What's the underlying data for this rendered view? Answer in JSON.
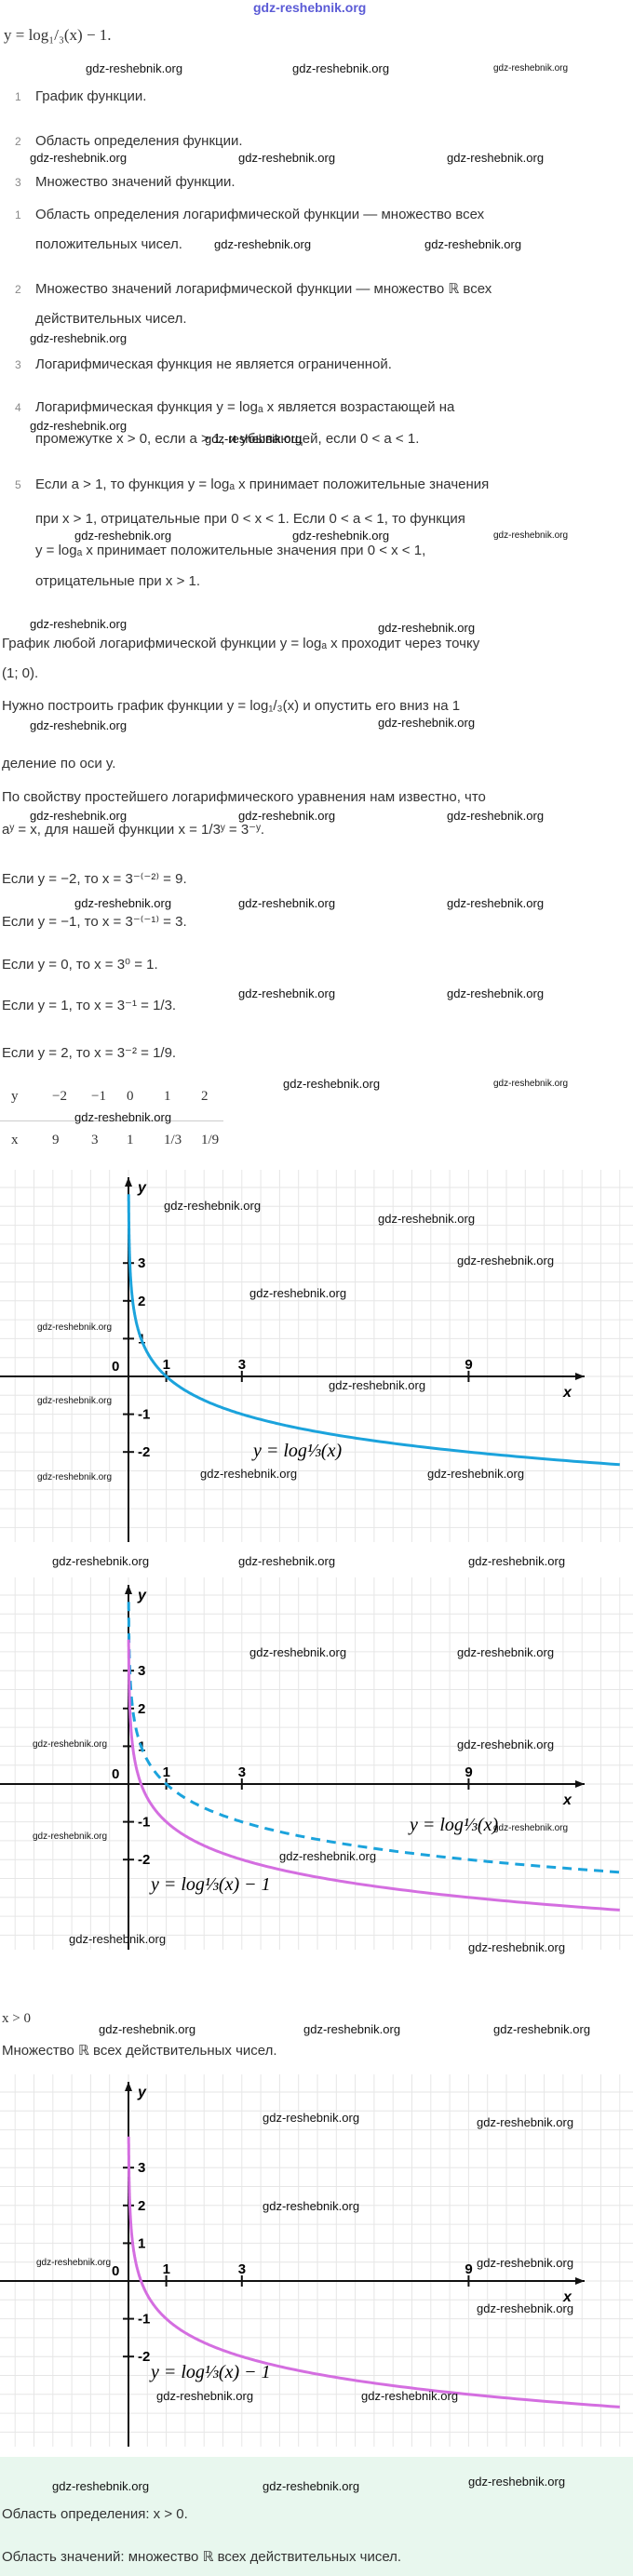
{
  "site": "gdz-reshebnik.org",
  "watermark": "gdz-reshebnik.org",
  "equation": "y = log₁/₃(x) − 1.",
  "plan": [
    {
      "n": 1,
      "text": "График функции."
    },
    {
      "n": 2,
      "text": "Область определения функции."
    },
    {
      "n": 3,
      "text": "Множество значений функции."
    }
  ],
  "properties": [
    {
      "n": 1,
      "lines": [
        "Область определения логарифмической функции — множество всех",
        "положительных чисел."
      ]
    },
    {
      "n": 2,
      "lines": [
        "Множество значений логарифмической функции — множество ℝ всех",
        "действительных чисел."
      ]
    },
    {
      "n": 3,
      "lines": [
        "Логарифмическая функция не является ограниченной."
      ]
    },
    {
      "n": 4,
      "lines": [
        "Логарифмическая функция y = logₐ x является возрастающей на",
        "промежутке x > 0, если a > 1, и убывающей, если 0 < a < 1."
      ]
    },
    {
      "n": 5,
      "lines": [
        "Если a > 1, то функция y = logₐ x принимает положительные значения",
        "при x > 1, отрицательные при 0 < x < 1. Если 0 < a < 1, то функция",
        "y = logₐ x принимает положительные значения при 0 < x < 1,",
        "отрицательные при x > 1."
      ]
    }
  ],
  "text_lines": [
    "График любой логарифмической функции y = logₐ x проходит через точку",
    "(1; 0).",
    "Нужно построить график функции y = log₁/₃(x) и опустить его вниз на 1",
    "деление по оси y.",
    "По свойству простейшего логарифмического уравнения нам известно, что",
    "aʸ = x, для нашей функции x = 1/3ʸ = 3⁻ʸ.",
    "Если y = −2, то x = 3⁻⁽⁻²⁾ = 9.",
    "Если y = −1, то x = 3⁻⁽⁻¹⁾ = 3.",
    "Если y = 0, то x = 3⁰ = 1.",
    "Если y = 1, то x = 3⁻¹ = 1/3.",
    "Если y = 2, то x = 3⁻² = 1/9."
  ],
  "table": {
    "rows": [
      [
        "y",
        "−2",
        "−1",
        "0",
        "1",
        "2"
      ],
      [
        "x",
        "9",
        "3",
        "1",
        "1/3",
        "1/9"
      ]
    ]
  },
  "axes": {
    "x": "x",
    "y": "y",
    "origin": "0",
    "xticks": [
      1,
      3,
      9
    ],
    "yticks": [
      3,
      2,
      1,
      -1,
      -2
    ]
  },
  "graphs": [
    {
      "curve_labels": [
        "y = log⅓(x)"
      ]
    },
    {
      "curve_labels": [
        "y = log⅓(x)",
        "y = log⅓(x) − 1"
      ]
    },
    {
      "curve_labels": [
        "y = log⅓(x) − 1"
      ]
    }
  ],
  "answer_mid": [
    "x > 0",
    "Множество ℝ всех действительных чисел."
  ],
  "answer_box": [
    "Область определения: x > 0.",
    "Область значений: множество ℝ всех действительных чисел."
  ]
}
